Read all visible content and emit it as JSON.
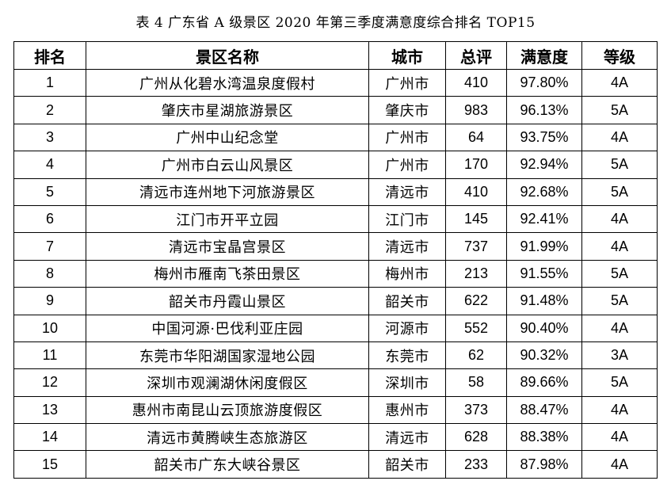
{
  "caption": "表 4  广东省 A 级景区 2020 年第三季度满意度综合排名 TOP15",
  "headers": {
    "rank": "排名",
    "name": "景区名称",
    "city": "城市",
    "total": "总评",
    "satisfaction": "满意度",
    "grade": "等级"
  },
  "rows": [
    {
      "rank": "1",
      "name": "广州从化碧水湾温泉度假村",
      "city": "广州市",
      "total": "410",
      "satisfaction": "97.80%",
      "grade": "4A"
    },
    {
      "rank": "2",
      "name": "肇庆市星湖旅游景区",
      "city": "肇庆市",
      "total": "983",
      "satisfaction": "96.13%",
      "grade": "5A"
    },
    {
      "rank": "3",
      "name": "广州中山纪念堂",
      "city": "广州市",
      "total": "64",
      "satisfaction": "93.75%",
      "grade": "4A"
    },
    {
      "rank": "4",
      "name": "广州市白云山风景区",
      "city": "广州市",
      "total": "170",
      "satisfaction": "92.94%",
      "grade": "5A"
    },
    {
      "rank": "5",
      "name": "清远市连州地下河旅游景区",
      "city": "清远市",
      "total": "410",
      "satisfaction": "92.68%",
      "grade": "5A"
    },
    {
      "rank": "6",
      "name": "江门市开平立园",
      "city": "江门市",
      "total": "145",
      "satisfaction": "92.41%",
      "grade": "4A"
    },
    {
      "rank": "7",
      "name": "清远市宝晶宫景区",
      "city": "清远市",
      "total": "737",
      "satisfaction": "91.99%",
      "grade": "4A"
    },
    {
      "rank": "8",
      "name": "梅州市雁南飞茶田景区",
      "city": "梅州市",
      "total": "213",
      "satisfaction": "91.55%",
      "grade": "5A"
    },
    {
      "rank": "9",
      "name": "韶关市丹霞山景区",
      "city": "韶关市",
      "total": "622",
      "satisfaction": "91.48%",
      "grade": "5A"
    },
    {
      "rank": "10",
      "name": "中国河源·巴伐利亚庄园",
      "city": "河源市",
      "total": "552",
      "satisfaction": "90.40%",
      "grade": "4A"
    },
    {
      "rank": "11",
      "name": "东莞市华阳湖国家湿地公园",
      "city": "东莞市",
      "total": "62",
      "satisfaction": "90.32%",
      "grade": "3A"
    },
    {
      "rank": "12",
      "name": "深圳市观澜湖休闲度假区",
      "city": "深圳市",
      "total": "58",
      "satisfaction": "89.66%",
      "grade": "5A"
    },
    {
      "rank": "13",
      "name": "惠州市南昆山云顶旅游度假区",
      "city": "惠州市",
      "total": "373",
      "satisfaction": "88.47%",
      "grade": "4A"
    },
    {
      "rank": "14",
      "name": "清远市黄腾峡生态旅游区",
      "city": "清远市",
      "total": "628",
      "satisfaction": "88.38%",
      "grade": "4A"
    },
    {
      "rank": "15",
      "name": "韶关市广东大峡谷景区",
      "city": "韶关市",
      "total": "233",
      "satisfaction": "87.98%",
      "grade": "4A"
    }
  ]
}
